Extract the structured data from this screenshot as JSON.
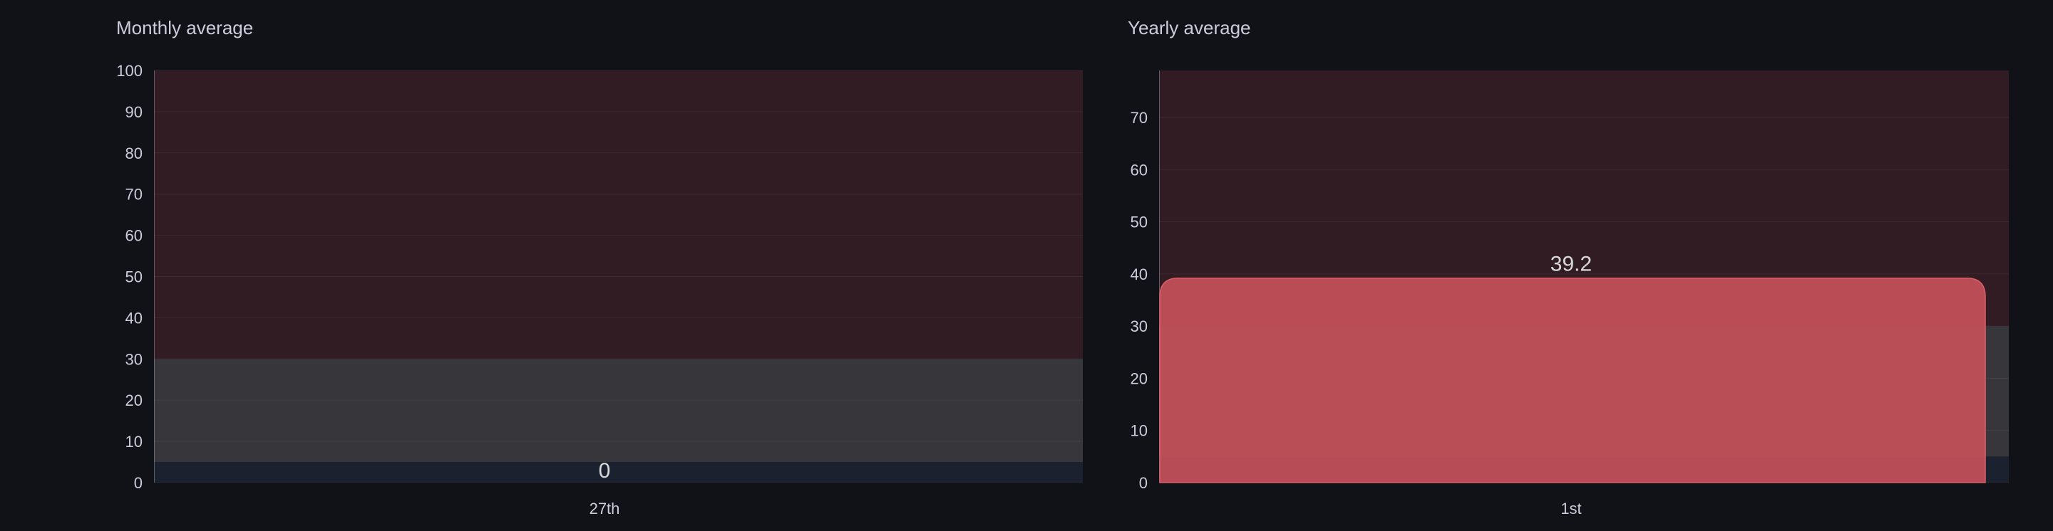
{
  "chart_data": [
    {
      "type": "bar",
      "title": "Monthly average",
      "categories": [
        "27th"
      ],
      "values": [
        0
      ],
      "value_labels": [
        "0"
      ],
      "ylim": [
        0,
        100
      ],
      "yticks": [
        0,
        10,
        20,
        30,
        40,
        50,
        60,
        70,
        80,
        90,
        100
      ],
      "threshold_bands": [
        {
          "from": 0,
          "to": 5,
          "color": "#1c2130"
        },
        {
          "from": 5,
          "to": 30,
          "color": "#37373b"
        },
        {
          "from": 30,
          "to": 100,
          "color": "#321c23"
        }
      ],
      "bar_color": "#c4505a",
      "grid": true,
      "legend": "none"
    },
    {
      "type": "bar",
      "title": "Yearly average",
      "categories": [
        "1st"
      ],
      "values": [
        39.2
      ],
      "value_labels": [
        "39.2"
      ],
      "ylim": [
        0,
        79
      ],
      "yticks": [
        0,
        10,
        20,
        30,
        40,
        50,
        60,
        70
      ],
      "threshold_bands": [
        {
          "from": 0,
          "to": 5,
          "color": "#1c2130"
        },
        {
          "from": 5,
          "to": 30,
          "color": "#37373b"
        },
        {
          "from": 30,
          "to": 79,
          "color": "#321c23"
        }
      ],
      "bar_color": "#c4505a",
      "grid": true,
      "legend": "none"
    }
  ]
}
